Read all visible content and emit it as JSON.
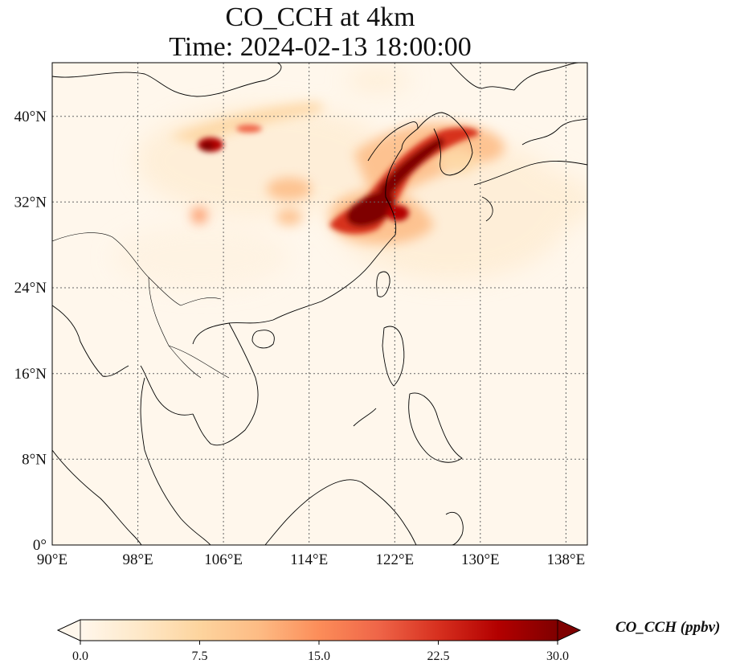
{
  "title": {
    "line1": "CO_CCH at 4km",
    "line2": "Time: 2024-02-13 18:00:00"
  },
  "map": {
    "lon_range": [
      90,
      140
    ],
    "lat_range": [
      0,
      45
    ],
    "lon_ticks": [
      "90°E",
      "98°E",
      "106°E",
      "114°E",
      "122°E",
      "130°E",
      "138°E"
    ],
    "lat_ticks": [
      "0°",
      "8°N",
      "16°N",
      "24°N",
      "32°N",
      "40°N"
    ],
    "gridlines": true,
    "background_color": "#fff7ec",
    "coastline_color": "#000000"
  },
  "colorbar": {
    "label": "CO_CCH (ppbv)",
    "min": 0.0,
    "max": 30.0,
    "tick_labels": [
      "0.0",
      "7.5",
      "15.0",
      "22.5",
      "30.0"
    ],
    "colormap": "OrRd",
    "extend": "both",
    "colors": [
      "#fff7ec",
      "#fee8c8",
      "#fdd49e",
      "#fdbb84",
      "#fc8d59",
      "#ef6548",
      "#d7301f",
      "#b30000",
      "#7f0000"
    ]
  }
}
